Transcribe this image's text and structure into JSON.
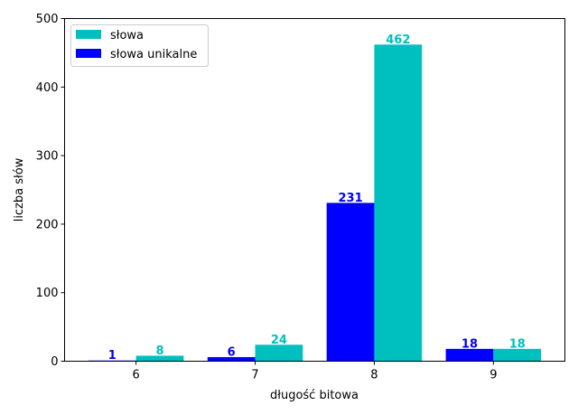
{
  "chart_data": {
    "type": "bar",
    "title": "",
    "xlabel": "długość bitowa",
    "ylabel": "liczba słów",
    "categories": [
      "6",
      "7",
      "8",
      "9"
    ],
    "ylim": [
      0,
      500
    ],
    "yticks": [
      "0",
      "100",
      "200",
      "300",
      "400",
      "500"
    ],
    "grid": false,
    "legend_position": "top-left",
    "legend_order": [
      1,
      0
    ],
    "series": [
      {
        "name": "słowa unikalne",
        "values": [
          1,
          6,
          231,
          18
        ],
        "color": "#0000ff"
      },
      {
        "name": "słowa",
        "values": [
          8,
          24,
          462,
          18
        ],
        "color": "#00bfbf"
      }
    ]
  }
}
